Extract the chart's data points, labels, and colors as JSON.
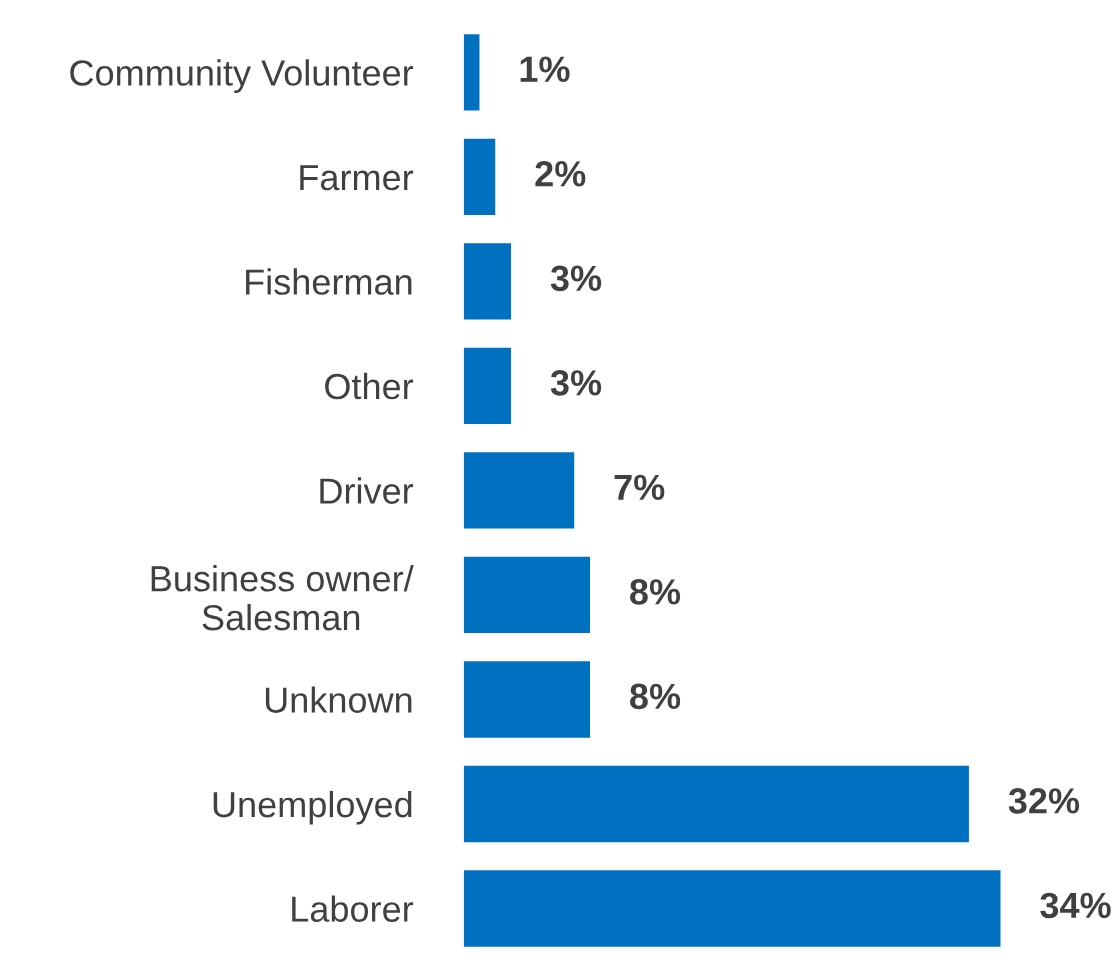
{
  "chart_data": {
    "type": "bar",
    "orientation": "horizontal",
    "categories": [
      "Community Volunteer",
      "Farmer",
      "Fisherman",
      "Other",
      "Driver",
      "Business owner/\nSalesman",
      "Unknown",
      "Unemployed",
      "Laborer"
    ],
    "values": [
      1,
      2,
      3,
      3,
      7,
      8,
      8,
      32,
      34
    ],
    "value_labels": [
      "1%",
      "2%",
      "3%",
      "3%",
      "7%",
      "8%",
      "8%",
      "32%",
      "34%"
    ],
    "color": "#0070c0",
    "grid": false,
    "legend": false
  }
}
